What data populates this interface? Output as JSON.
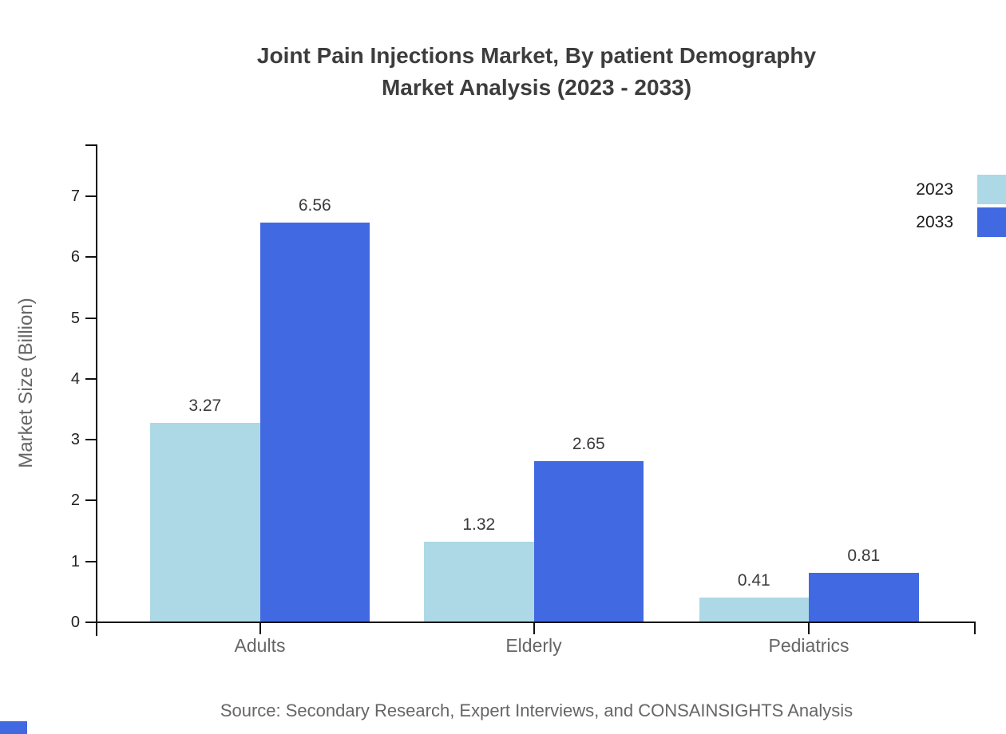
{
  "title": {
    "line1": "Joint Pain Injections Market, By patient Demography",
    "line2": "Market Analysis (2023 - 2033)"
  },
  "y_axis": {
    "label": "Market Size (Billion)",
    "ticks": [
      "0",
      "1",
      "2",
      "3",
      "4",
      "5",
      "6",
      "7"
    ]
  },
  "x_axis": {
    "categories": [
      "Adults",
      "Elderly",
      "Pediatrics"
    ]
  },
  "legend": [
    {
      "label": "2023",
      "color": "#ADD8E6"
    },
    {
      "label": "2033",
      "color": "#4169E1"
    }
  ],
  "source": "Source: Secondary Research, Expert Interviews, and CONSAINSIGHTS Analysis",
  "colors": {
    "series_2023": "#ADD8E6",
    "series_2033": "#4169E1",
    "axis": "#111111",
    "title_text": "#3d3d3d",
    "muted_text": "#666666",
    "brand_mark": "#4169E1"
  },
  "chart_data": {
    "type": "bar",
    "title": "Joint Pain Injections Market, By patient Demography Market Analysis (2023 - 2033)",
    "categories": [
      "Adults",
      "Elderly",
      "Pediatrics"
    ],
    "series": [
      {
        "name": "2023",
        "color": "#ADD8E6",
        "values": [
          3.27,
          1.32,
          0.41
        ]
      },
      {
        "name": "2033",
        "color": "#4169E1",
        "values": [
          6.56,
          2.65,
          0.81
        ]
      }
    ],
    "xlabel": "",
    "ylabel": "Market Size (Billion)",
    "ylim": [
      0,
      7.85
    ],
    "y_ticks": [
      0,
      1,
      2,
      3,
      4,
      5,
      6,
      7
    ],
    "grid": false,
    "legend_position": "top-right",
    "value_labels": "2-decimal",
    "source": "Source: Secondary Research, Expert Interviews, and CONSAINSIGHTS Analysis"
  }
}
